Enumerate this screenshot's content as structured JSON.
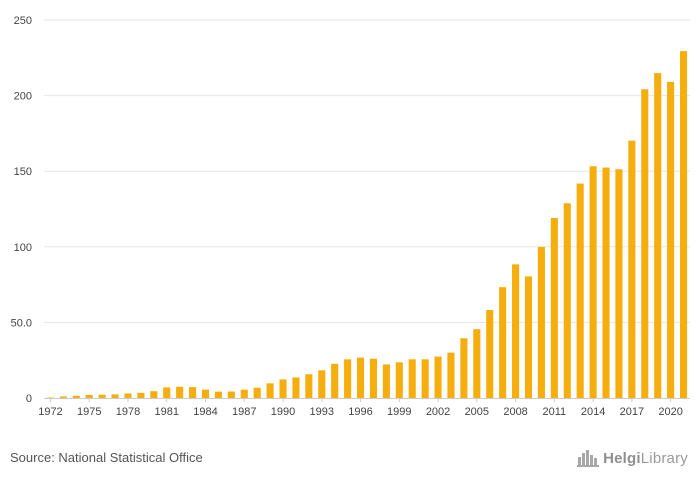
{
  "chart_data": {
    "type": "bar",
    "title": "",
    "xlabel": "",
    "ylabel": "",
    "ylim": [
      0,
      250
    ],
    "y_ticks": [
      "0",
      "50.0",
      "100",
      "150",
      "200",
      "250"
    ],
    "y_tick_values": [
      0,
      50,
      100,
      150,
      200,
      250
    ],
    "x_tick_labels": [
      "1972",
      "1975",
      "1978",
      "1981",
      "1984",
      "1987",
      "1990",
      "1993",
      "1996",
      "1999",
      "2002",
      "2005",
      "2008",
      "2011",
      "2014",
      "2017",
      "2020"
    ],
    "categories": [
      1972,
      1973,
      1974,
      1975,
      1976,
      1977,
      1978,
      1979,
      1980,
      1981,
      1982,
      1983,
      1984,
      1985,
      1986,
      1987,
      1988,
      1989,
      1990,
      1991,
      1992,
      1993,
      1994,
      1995,
      1996,
      1997,
      1998,
      1999,
      2000,
      2001,
      2002,
      2003,
      2004,
      2005,
      2006,
      2007,
      2008,
      2009,
      2010,
      2011,
      2012,
      2013,
      2014,
      2015,
      2016,
      2017,
      2018,
      2019,
      2020,
      2021
    ],
    "values": [
      0.3,
      1.0,
      1.5,
      2.0,
      2.2,
      2.4,
      3.0,
      3.4,
      4.5,
      7.0,
      7.4,
      7.2,
      5.5,
      4.2,
      4.3,
      5.5,
      6.8,
      9.7,
      12.3,
      13.6,
      15.7,
      18.3,
      22.6,
      25.6,
      26.7,
      26.0,
      22.2,
      23.6,
      25.6,
      25.6,
      27.4,
      30.0,
      39.5,
      45.5,
      58.2,
      73.3,
      88.4,
      80.4,
      99.9,
      119.0,
      128.8,
      141.8,
      153.3,
      152.4,
      151.3,
      170.2,
      204.2,
      214.9,
      209.1,
      229.4
    ],
    "colors": {
      "bar": "#F5AE0E",
      "grid": "#E6E6E6",
      "tick_text": "#444444",
      "axis": "#CCCCCC"
    },
    "grid": true,
    "legend": "none"
  },
  "footer": {
    "source": "Source: National Statistical Office",
    "brand_prefix": "Helgi",
    "brand_suffix": "Library"
  }
}
